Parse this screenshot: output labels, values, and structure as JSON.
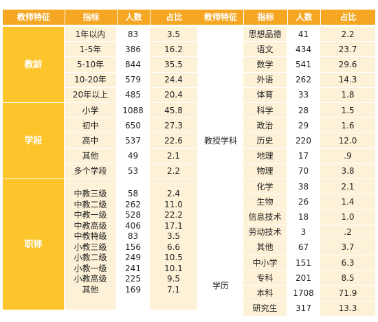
{
  "header": [
    "教师特征",
    "指标",
    "人数",
    "占比",
    "教师特征",
    "指标",
    "人数",
    "占比"
  ],
  "left": [
    {
      "category": "教龄",
      "rows": [
        {
          "label": "1年以内",
          "count": "83",
          "pct": "3.5"
        },
        {
          "label": "1-5年",
          "count": "386",
          "pct": "16.2"
        },
        {
          "label": "5-10年",
          "count": "844",
          "pct": "35.5"
        },
        {
          "label": "10-20年",
          "count": "579",
          "pct": "24.4"
        },
        {
          "label": "20年以上",
          "count": "485",
          "pct": "20.4"
        }
      ]
    },
    {
      "category": "学段",
      "rows": [
        {
          "label": "小学",
          "count": "1088",
          "pct": "45.8"
        },
        {
          "label": "初中",
          "count": "650",
          "pct": "27.3"
        },
        {
          "label": "高中",
          "count": "537",
          "pct": "22.6"
        },
        {
          "label": "其他",
          "count": "49",
          "pct": "2.1"
        },
        {
          "label": "多个学段",
          "count": "53",
          "pct": "2.2"
        }
      ]
    },
    {
      "category": "职称",
      "labels": [
        "中教三级",
        "中教二级",
        "中教一级",
        "中教高级",
        "中教特级",
        "小教三级",
        "小教二级",
        "小教一级",
        "小教高级",
        "其他"
      ],
      "counts": [
        "58",
        "262",
        "528",
        "406",
        "83",
        "156",
        "249",
        "241",
        "225",
        "169"
      ],
      "pcts": [
        "2.4",
        "11.0",
        "22.2",
        "17.1",
        "3.5",
        "6.6",
        "10.5",
        "10.1",
        "9.5",
        "7.1"
      ]
    }
  ],
  "right": [
    {
      "category": "教授学科",
      "rows": [
        {
          "label": "思想品德",
          "count": "41",
          "pct": "2.2"
        },
        {
          "label": "语文",
          "count": "434",
          "pct": "23.7"
        },
        {
          "label": "数学",
          "count": "541",
          "pct": "29.6"
        },
        {
          "label": "外语",
          "count": "262",
          "pct": "14.3"
        },
        {
          "label": "体育",
          "count": "33",
          "pct": "1.8"
        },
        {
          "label": "科学",
          "count": "28",
          "pct": "1.5"
        },
        {
          "label": "政治",
          "count": "29",
          "pct": "1.6"
        },
        {
          "label": "历史",
          "count": "220",
          "pct": "12.0"
        },
        {
          "label": "地理",
          "count": "17",
          "pct": ".9"
        },
        {
          "label": "物理",
          "count": "70",
          "pct": "3.8"
        },
        {
          "label": "化学",
          "count": "38",
          "pct": "2.1"
        },
        {
          "label": "生物",
          "count": "26",
          "pct": "1.4"
        },
        {
          "label": "信息技术",
          "count": "18",
          "pct": "1.0"
        },
        {
          "label": "劳动技术",
          "count": "3",
          "pct": ".2"
        },
        {
          "label": "其他",
          "count": "67",
          "pct": "3.7"
        }
      ]
    },
    {
      "category": "学历",
      "rows": [
        {
          "label": "中小学",
          "count": "151",
          "pct": "6.3"
        },
        {
          "label": "专科",
          "count": "201",
          "pct": "8.5"
        },
        {
          "label": "本科",
          "count": "1708",
          "pct": "71.9"
        },
        {
          "label": "研究生",
          "count": "317",
          "pct": "13.3"
        }
      ]
    }
  ]
}
